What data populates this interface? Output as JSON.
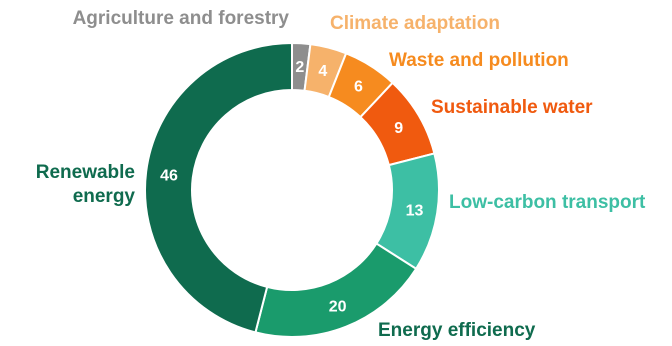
{
  "chart_data": {
    "type": "pie",
    "donut": true,
    "categories": [
      "Agriculture and forestry",
      "Climate adaptation",
      "Waste and pollution",
      "Sustainable water",
      "Low-carbon transport",
      "Energy efficiency",
      "Renewable energy"
    ],
    "values": [
      2,
      4,
      6,
      9,
      13,
      20,
      46
    ],
    "value_labels": [
      "2",
      "4",
      "6",
      "9",
      "13",
      "20",
      "46"
    ],
    "colors": [
      "#8e8e8e",
      "#f6b26b",
      "#f68b1f",
      "#f05a0f",
      "#3dbfa4",
      "#1a9b6c",
      "#0f6b4e"
    ],
    "label_colors": [
      "#8e8e8e",
      "#f6b26b",
      "#f68b1f",
      "#f05a0f",
      "#3dbfa4",
      "#0f6b4e",
      "#0f6b4e"
    ],
    "label_lines": [
      [
        "Agriculture and forestry"
      ],
      [
        "Climate adaptation"
      ],
      [
        "Waste and pollution"
      ],
      [
        "Sustainable water"
      ],
      [
        "Low-carbon transport"
      ],
      [
        "Energy efficiency"
      ],
      [
        "Renewable",
        "energy"
      ]
    ],
    "title": "",
    "legend": "none"
  }
}
